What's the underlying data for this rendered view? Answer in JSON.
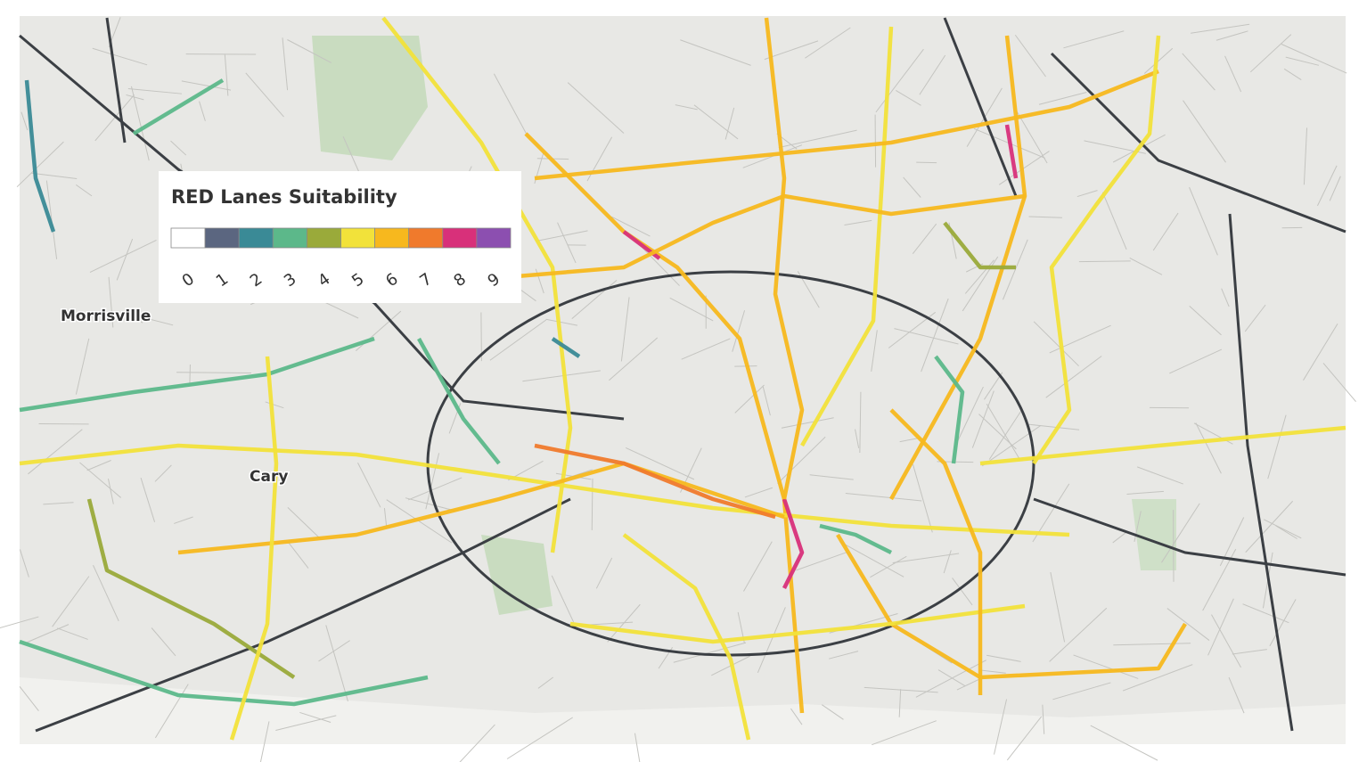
{
  "legend": {
    "title": "RED Lanes Suitability",
    "values": [
      0,
      1,
      2,
      3,
      4,
      5,
      6,
      7,
      8,
      9
    ],
    "colors": [
      "#ffffff",
      "#5b6680",
      "#3a8a96",
      "#5cb88a",
      "#9aaa3a",
      "#f2e23a",
      "#f7b81e",
      "#f07a2c",
      "#d8307a",
      "#8c4fb0"
    ]
  },
  "places": [
    "Morrisville",
    "Cary"
  ]
}
